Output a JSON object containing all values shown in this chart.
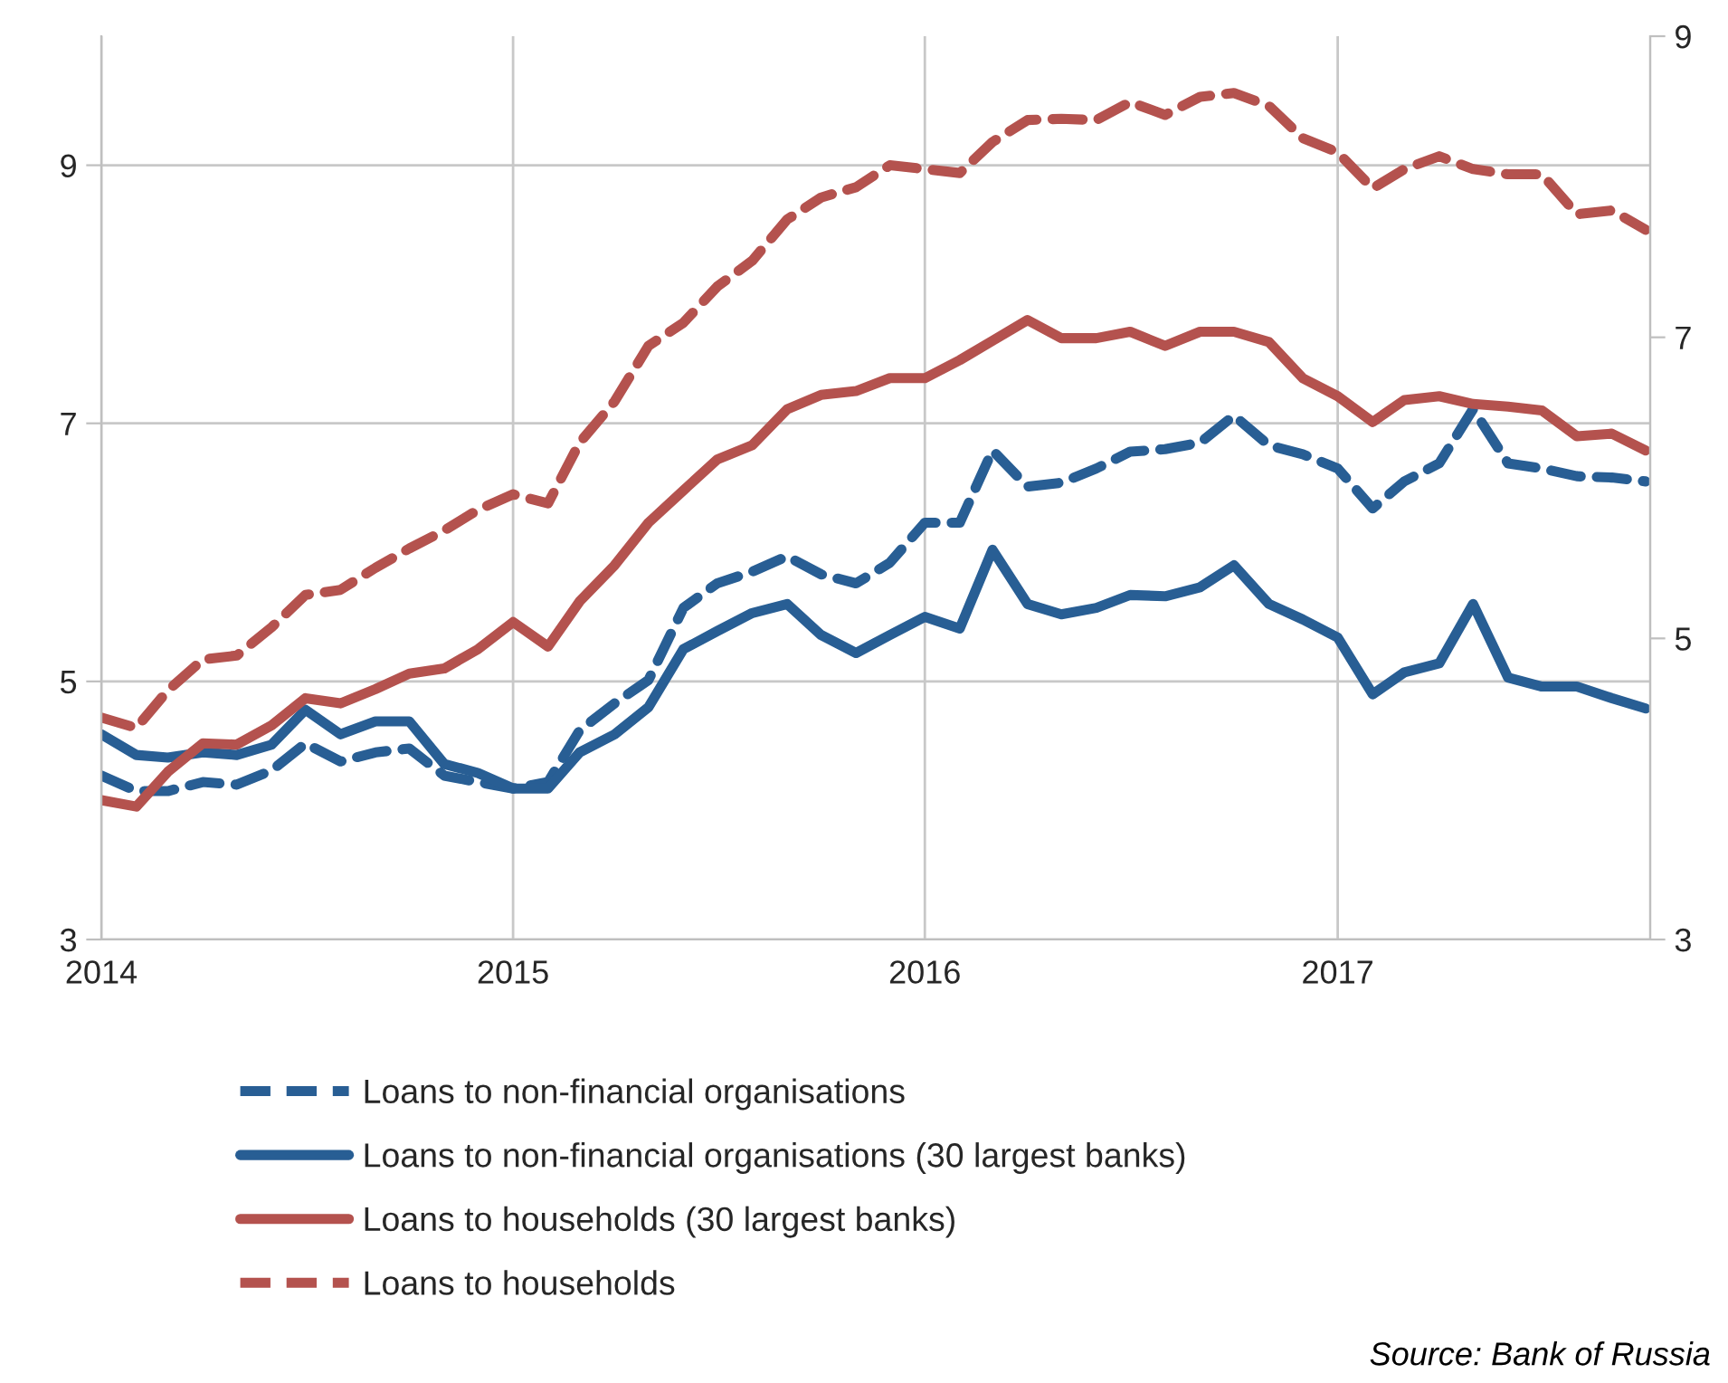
{
  "chart_data": {
    "type": "line",
    "x": [
      "2014-01",
      "2014-02",
      "2014-03",
      "2014-04",
      "2014-05",
      "2014-06",
      "2014-07",
      "2014-08",
      "2014-09",
      "2014-10",
      "2014-11",
      "2014-12",
      "2015-01",
      "2015-02",
      "2015-03",
      "2015-04",
      "2015-05",
      "2015-06",
      "2015-07",
      "2015-08",
      "2015-09",
      "2015-10",
      "2015-11",
      "2015-12",
      "2016-01",
      "2016-02",
      "2016-03",
      "2016-04",
      "2016-05",
      "2016-06",
      "2016-07",
      "2016-08",
      "2016-09",
      "2016-10",
      "2016-11",
      "2016-12",
      "2017-01",
      "2017-02",
      "2017-03",
      "2017-04",
      "2017-05",
      "2017-06",
      "2017-07",
      "2017-08",
      "2017-09",
      "2017-10"
    ],
    "series": [
      {
        "name": "Loans to non-financial organisations",
        "color": "#285e94",
        "line_style": "dashed",
        "values": [
          4.27,
          4.15,
          4.15,
          4.22,
          4.2,
          4.31,
          4.52,
          4.38,
          4.45,
          4.48,
          4.27,
          4.22,
          4.17,
          4.22,
          4.62,
          4.83,
          5.01,
          5.57,
          5.76,
          5.85,
          5.97,
          5.83,
          5.76,
          5.92,
          6.23,
          6.23,
          6.79,
          6.51,
          6.54,
          6.65,
          6.78,
          6.8,
          6.85,
          7.06,
          6.83,
          6.76,
          6.65,
          6.34,
          6.55,
          6.69,
          7.11,
          6.69,
          6.65,
          6.59,
          6.58,
          6.55
        ]
      },
      {
        "name": "Loans to non-financial organisations (30 largest banks)",
        "color": "#285e94",
        "line_style": "solid",
        "values": [
          4.59,
          4.43,
          4.41,
          4.45,
          4.43,
          4.51,
          4.78,
          4.59,
          4.69,
          4.69,
          4.36,
          4.29,
          4.17,
          4.17,
          4.45,
          4.59,
          4.8,
          5.25,
          5.39,
          5.53,
          5.6,
          5.36,
          5.22,
          5.36,
          5.5,
          5.41,
          6.02,
          5.6,
          5.52,
          5.57,
          5.67,
          5.66,
          5.73,
          5.9,
          5.6,
          5.48,
          5.34,
          4.9,
          5.07,
          5.14,
          5.6,
          5.03,
          4.96,
          4.96,
          4.87,
          4.79
        ]
      },
      {
        "name": "Loans to households (30 largest banks)",
        "color": "#b4524e",
        "line_style": "solid",
        "values": [
          4.08,
          4.03,
          4.3,
          4.52,
          4.51,
          4.66,
          4.87,
          4.83,
          4.94,
          5.06,
          5.1,
          5.25,
          5.46,
          5.27,
          5.62,
          5.9,
          6.23,
          6.48,
          6.72,
          6.83,
          7.11,
          7.22,
          7.25,
          7.35,
          7.35,
          7.49,
          7.64,
          7.8,
          7.66,
          7.66,
          7.71,
          7.6,
          7.71,
          7.71,
          7.63,
          7.35,
          7.21,
          7.01,
          7.18,
          7.21,
          7.15,
          7.13,
          7.1,
          6.9,
          6.92,
          6.79
        ]
      },
      {
        "name": "Loans to households",
        "color": "#b4524e",
        "line_style": "dashed",
        "values": [
          4.72,
          4.64,
          4.93,
          5.17,
          5.2,
          5.42,
          5.67,
          5.71,
          5.88,
          6.03,
          6.17,
          6.33,
          6.45,
          6.38,
          6.85,
          7.17,
          7.6,
          7.78,
          8.06,
          8.26,
          8.58,
          8.75,
          8.83,
          9.0,
          8.97,
          8.94,
          9.18,
          9.35,
          9.36,
          9.35,
          9.49,
          9.39,
          9.53,
          9.56,
          9.46,
          9.21,
          9.1,
          8.82,
          8.97,
          9.07,
          8.97,
          8.93,
          8.93,
          8.62,
          8.65,
          8.5
        ]
      }
    ],
    "xlim": [
      "2014-01-01",
      "2017-10-05"
    ],
    "xticks": [
      {
        "value": "2014-01-01",
        "label": "2014"
      },
      {
        "value": "2015-01-01",
        "label": "2015"
      },
      {
        "value": "2016-01-01",
        "label": "2016"
      },
      {
        "value": "2017-01-01",
        "label": "2017"
      }
    ],
    "ylim": [
      3,
      10
    ],
    "yticks": [
      3,
      5,
      7,
      9
    ],
    "y2lim": [
      3,
      9
    ],
    "y2ticks": [
      3,
      5,
      7,
      9
    ],
    "grid": true,
    "legend": "bottom",
    "marker": "none",
    "annotations": [
      "Source: Bank of Russia"
    ]
  }
}
